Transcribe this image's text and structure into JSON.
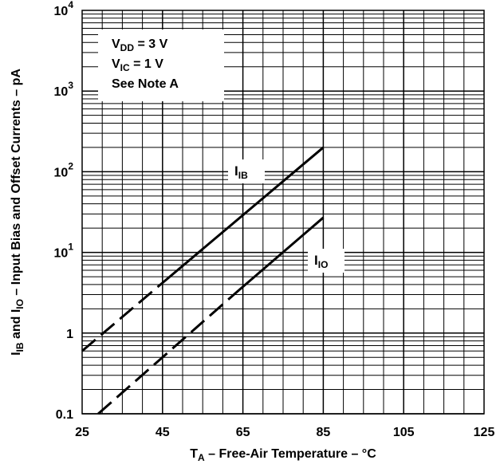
{
  "chart_data": {
    "type": "line",
    "title": "",
    "xlabel": {
      "main": "T",
      "sub": "A",
      "rest": " – Free-Air Temperature – °C"
    },
    "ylabel": {
      "p1": "I",
      "s1": "IB",
      "p2": " and I",
      "s2": "IO",
      "p3": " – Input Bias and Offset Currents – pA"
    },
    "xlim": [
      25,
      125
    ],
    "ylim": [
      0.1,
      10000
    ],
    "yscale": "log",
    "grid": true,
    "x_ticks": [
      "25",
      "45",
      "65",
      "85",
      "105",
      "125"
    ],
    "y_ticks": [
      {
        "value": 0.1,
        "base": "0.1",
        "exp": ""
      },
      {
        "value": 1,
        "base": "1",
        "exp": ""
      },
      {
        "value": 10,
        "base": "10",
        "exp": "1"
      },
      {
        "value": 100,
        "base": "10",
        "exp": "2"
      },
      {
        "value": 1000,
        "base": "10",
        "exp": "3"
      },
      {
        "value": 10000,
        "base": "10",
        "exp": "4"
      }
    ],
    "series": [
      {
        "name": "IB",
        "label_main": "I",
        "label_sub": "IB",
        "dashed": {
          "x": [
            25,
            45
          ],
          "y": [
            0.6,
            4.2
          ]
        },
        "solid": {
          "x": [
            45,
            85
          ],
          "y": [
            4.2,
            200
          ]
        }
      },
      {
        "name": "IO",
        "label_main": "I",
        "label_sub": "IO",
        "dashed": {
          "x": [
            29,
            64
          ],
          "y": [
            0.1,
            3.4
          ]
        },
        "solid": {
          "x": [
            64,
            85
          ],
          "y": [
            3.4,
            27
          ]
        }
      }
    ],
    "annotations": [
      {
        "main": "V",
        "sub": "DD",
        "rest": " = 3 V"
      },
      {
        "main": "V",
        "sub": "IC",
        "rest": " = 1 V"
      },
      {
        "main": "See Note A",
        "sub": "",
        "rest": ""
      }
    ]
  }
}
